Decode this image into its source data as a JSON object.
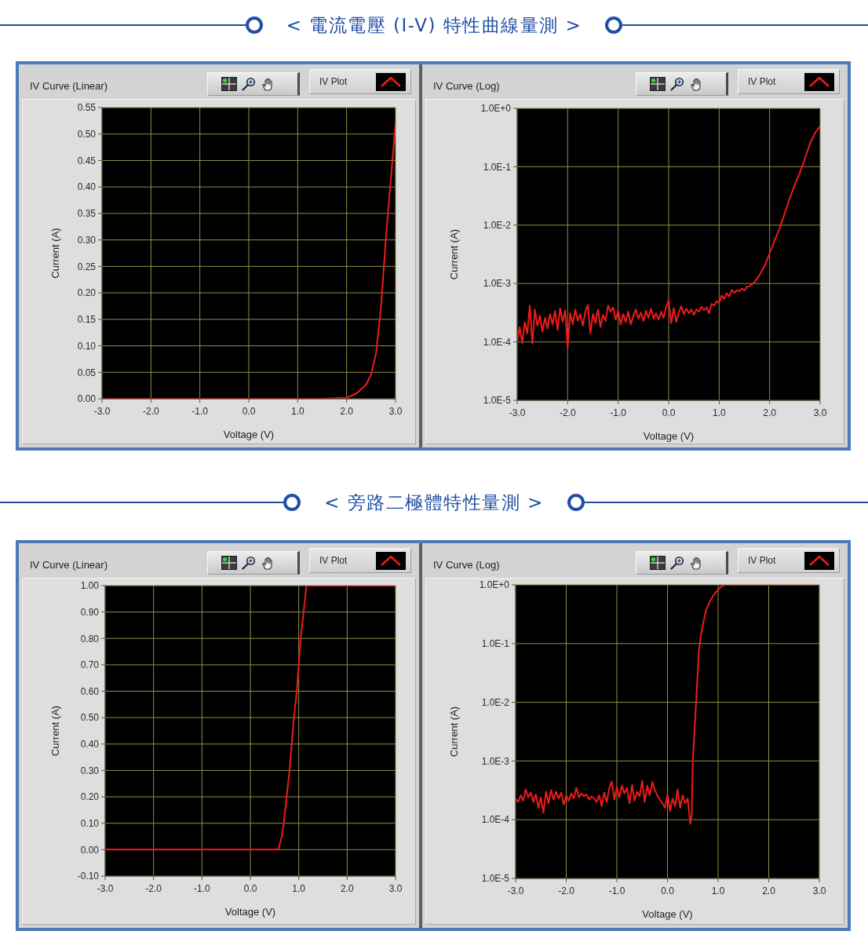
{
  "chart_data": [
    {
      "type": "other",
      "title": "< 電流電壓 (I-V) 特性曲線量測 >"
    },
    {
      "type": "line",
      "title": "IV Curve (Linear)",
      "xlabel": "Voltage (V)",
      "ylabel": "Current (A)",
      "xlim": [
        -3,
        3
      ],
      "ylim": [
        0,
        0.55
      ],
      "xticks": [
        {
          "value": -3,
          "label": "-3.0"
        },
        {
          "value": -2,
          "label": "-2.0"
        },
        {
          "value": -1,
          "label": "-1.0"
        },
        {
          "value": 0,
          "label": "0.0"
        },
        {
          "value": 1,
          "label": "1.0"
        },
        {
          "value": 2,
          "label": "2.0"
        },
        {
          "value": 3,
          "label": "3.0"
        }
      ],
      "yticks": [
        {
          "value": 0,
          "label": "0.00"
        },
        {
          "value": 0.05,
          "label": "0.05"
        },
        {
          "value": 0.1,
          "label": "0.10"
        },
        {
          "value": 0.15,
          "label": "0.15"
        },
        {
          "value": 0.2,
          "label": "0.20"
        },
        {
          "value": 0.25,
          "label": "0.25"
        },
        {
          "value": 0.3,
          "label": "0.30"
        },
        {
          "value": 0.35,
          "label": "0.35"
        },
        {
          "value": 0.4,
          "label": "0.40"
        },
        {
          "value": 0.45,
          "label": "0.45"
        },
        {
          "value": 0.5,
          "label": "0.50"
        },
        {
          "value": 0.55,
          "label": "0.55"
        }
      ],
      "grid": true,
      "legend": "top right",
      "series": [
        {
          "name": "IV Plot",
          "color": "#f01a1a",
          "x": [
            -3,
            1.5,
            2,
            2.2,
            2.4,
            2.5,
            2.6,
            2.7,
            2.8,
            2.9,
            3
          ],
          "values": [
            0,
            0,
            0.002,
            0.01,
            0.027,
            0.046,
            0.085,
            0.17,
            0.3,
            0.41,
            0.52
          ]
        }
      ]
    },
    {
      "type": "line",
      "title": "IV Curve (Log)",
      "xlabel": "Voltage (V)",
      "ylabel": "Current (A)",
      "xlim": [
        -3,
        3
      ],
      "ylim": [
        1e-05,
        1
      ],
      "log": true,
      "xticks": [
        {
          "value": -3,
          "label": "-3.0"
        },
        {
          "value": -2,
          "label": "-2.0"
        },
        {
          "value": -1,
          "label": "-1.0"
        },
        {
          "value": 0,
          "label": "0.0"
        },
        {
          "value": 1,
          "label": "1.0"
        },
        {
          "value": 2,
          "label": "2.0"
        },
        {
          "value": 3,
          "label": "3.0"
        }
      ],
      "yticks": [
        {
          "value": 1e-05,
          "label": "1.0E-5"
        },
        {
          "value": 0.0001,
          "label": "1.0E-4"
        },
        {
          "value": 0.001,
          "label": "1.0E-3"
        },
        {
          "value": 0.01,
          "label": "1.0E-2"
        },
        {
          "value": 0.1,
          "label": "1.0E-1"
        },
        {
          "value": 1,
          "label": "1.0E+0"
        }
      ],
      "grid": true,
      "legend": "top right",
      "series": [
        {
          "name": "IV Plot",
          "color": "#f01a1a",
          "x": [
            -3,
            -2.95,
            -2.9,
            -2.85,
            -2.8,
            -2.75,
            -2.7,
            -2.65,
            -2.6,
            -2.55,
            -2.5,
            -2.45,
            -2.4,
            -2.35,
            -2.3,
            -2.25,
            -2.2,
            -2.15,
            -2.1,
            -2.05,
            -2,
            -1.95,
            -1.9,
            -1.85,
            -1.8,
            -1.75,
            -1.7,
            -1.65,
            -1.6,
            -1.55,
            -1.5,
            -1.45,
            -1.4,
            -1.35,
            -1.3,
            -1.25,
            -1.2,
            -1.15,
            -1.1,
            -1.05,
            -1,
            -0.95,
            -0.9,
            -0.85,
            -0.8,
            -0.75,
            -0.7,
            -0.65,
            -0.6,
            -0.55,
            -0.5,
            -0.45,
            -0.4,
            -0.35,
            -0.3,
            -0.25,
            -0.2,
            -0.15,
            -0.1,
            -0.05,
            0,
            0.05,
            0.1,
            0.15,
            0.2,
            0.25,
            0.3,
            0.35,
            0.4,
            0.45,
            0.5,
            0.55,
            0.6,
            0.65,
            0.7,
            0.75,
            0.8,
            0.85,
            0.9,
            0.95,
            1,
            1.05,
            1.1,
            1.15,
            1.2,
            1.25,
            1.3,
            1.35,
            1.4,
            1.45,
            1.5,
            1.55,
            1.6,
            1.7,
            1.8,
            1.9,
            2,
            2.1,
            2.2,
            2.3,
            2.4,
            2.5,
            2.6,
            2.7,
            2.8,
            2.9,
            3
          ],
          "values": [
            0.0001,
            0.00018,
            9.5e-05,
            0.00022,
            0.00014,
            0.00042,
            9.5e-05,
            0.00036,
            0.00019,
            0.00028,
            0.00015,
            0.00026,
            0.00017,
            0.0003,
            0.0002,
            0.00034,
            0.00016,
            0.00038,
            0.00022,
            0.00035,
            8e-05,
            0.00031,
            0.0002,
            0.00036,
            0.00023,
            0.0003,
            0.00019,
            0.00033,
            0.00043,
            0.00014,
            0.0003,
            0.00021,
            0.00036,
            0.00018,
            0.00029,
            0.00023,
            0.00042,
            0.00033,
            0.00039,
            0.00024,
            0.00034,
            0.0002,
            0.0003,
            0.00022,
            0.00033,
            0.0002,
            0.00028,
            0.00036,
            0.00025,
            0.00032,
            0.00023,
            0.00034,
            0.00026,
            0.00037,
            0.00025,
            0.00031,
            0.00024,
            0.00033,
            0.00026,
            0.0004,
            0.00052,
            0.00021,
            0.00038,
            0.00022,
            0.00032,
            0.00041,
            0.0003,
            0.00037,
            0.00031,
            0.00036,
            0.00029,
            0.00036,
            0.00033,
            0.0004,
            0.00035,
            0.00039,
            0.00031,
            0.00045,
            0.00042,
            0.0005,
            0.00046,
            0.00062,
            0.00055,
            0.00068,
            0.0006,
            0.00078,
            0.00069,
            0.00077,
            0.00074,
            0.00082,
            0.00076,
            0.00088,
            0.0009,
            0.00105,
            0.0014,
            0.002,
            0.0033,
            0.0055,
            0.0089,
            0.016,
            0.029,
            0.05,
            0.08,
            0.14,
            0.25,
            0.38,
            0.5
          ]
        }
      ]
    },
    {
      "type": "other",
      "title": "< 旁路二極體特性量測 >"
    },
    {
      "type": "line",
      "title": "IV Curve (Linear)",
      "xlabel": "Voltage (V)",
      "ylabel": "Current (A)",
      "xlim": [
        -3,
        3
      ],
      "ylim": [
        -0.1,
        1
      ],
      "xticks": [
        {
          "value": -3,
          "label": "-3.0"
        },
        {
          "value": -2,
          "label": "-2.0"
        },
        {
          "value": -1,
          "label": "-1.0"
        },
        {
          "value": 0,
          "label": "0.0"
        },
        {
          "value": 1,
          "label": "1.0"
        },
        {
          "value": 2,
          "label": "2.0"
        },
        {
          "value": 3,
          "label": "3.0"
        }
      ],
      "yticks": [
        {
          "value": -0.1,
          "label": "-0.10"
        },
        {
          "value": 0,
          "label": "0.00"
        },
        {
          "value": 0.1,
          "label": "0.10"
        },
        {
          "value": 0.2,
          "label": "0.20"
        },
        {
          "value": 0.3,
          "label": "0.30"
        },
        {
          "value": 0.4,
          "label": "0.40"
        },
        {
          "value": 0.5,
          "label": "0.50"
        },
        {
          "value": 0.6,
          "label": "0.60"
        },
        {
          "value": 0.7,
          "label": "0.70"
        },
        {
          "value": 0.8,
          "label": "0.80"
        },
        {
          "value": 0.9,
          "label": "0.90"
        },
        {
          "value": 1,
          "label": "1.00"
        }
      ],
      "grid": true,
      "legend": "top right",
      "series": [
        {
          "name": "IV Plot",
          "color": "#f01a1a",
          "x": [
            -3,
            0.58,
            0.65,
            0.69,
            0.81,
            0.9,
            0.96,
            1.04,
            1.1,
            1.16,
            3
          ],
          "values": [
            0,
            0,
            0.05,
            0.1,
            0.3,
            0.5,
            0.6,
            0.8,
            0.9,
            1,
            1
          ]
        }
      ]
    },
    {
      "type": "line",
      "title": "IV Curve (Log)",
      "xlabel": "Voltage (V)",
      "ylabel": "Current (A)",
      "xlim": [
        -3,
        3
      ],
      "ylim": [
        1e-05,
        1
      ],
      "log": true,
      "xticks": [
        {
          "value": -3,
          "label": "-3.0"
        },
        {
          "value": -2,
          "label": "-2.0"
        },
        {
          "value": -1,
          "label": "-1.0"
        },
        {
          "value": 0,
          "label": "0.0"
        },
        {
          "value": 1,
          "label": "1.0"
        },
        {
          "value": 2,
          "label": "2.0"
        },
        {
          "value": 3,
          "label": "3.0"
        }
      ],
      "yticks": [
        {
          "value": 1e-05,
          "label": "1.0E-5"
        },
        {
          "value": 0.0001,
          "label": "1.0E-4"
        },
        {
          "value": 0.001,
          "label": "1.0E-3"
        },
        {
          "value": 0.01,
          "label": "1.0E-2"
        },
        {
          "value": 0.1,
          "label": "1.0E-1"
        },
        {
          "value": 1,
          "label": "1.0E+0"
        }
      ],
      "grid": true,
      "legend": "top right",
      "series": [
        {
          "name": "IV Plot",
          "color": "#f01a1a",
          "x": [
            -3,
            -2.95,
            -2.9,
            -2.85,
            -2.8,
            -2.75,
            -2.7,
            -2.65,
            -2.6,
            -2.55,
            -2.5,
            -2.45,
            -2.4,
            -2.35,
            -2.3,
            -2.25,
            -2.2,
            -2.15,
            -2.1,
            -2.05,
            -2,
            -1.95,
            -1.9,
            -1.85,
            -1.8,
            -1.75,
            -1.7,
            -1.65,
            -1.6,
            -1.55,
            -1.5,
            -1.45,
            -1.4,
            -1.35,
            -1.3,
            -1.25,
            -1.2,
            -1.15,
            -1.1,
            -1.05,
            -1,
            -0.95,
            -0.9,
            -0.85,
            -0.8,
            -0.75,
            -0.7,
            -0.65,
            -0.6,
            -0.55,
            -0.5,
            -0.45,
            -0.4,
            -0.35,
            -0.3,
            -0.25,
            -0.2,
            -0.15,
            -0.1,
            -0.05,
            0,
            0.05,
            0.1,
            0.15,
            0.2,
            0.25,
            0.3,
            0.35,
            0.4,
            0.45,
            0.48,
            0.5,
            0.53,
            0.56,
            0.59,
            0.62,
            0.66,
            0.7,
            0.76,
            0.83,
            0.9,
            1,
            1.06,
            1.13,
            3
          ],
          "values": [
            0.00023,
            0.0002,
            0.00026,
            0.00021,
            0.00033,
            0.00024,
            0.00029,
            0.0002,
            0.00027,
            0.00016,
            0.00024,
            0.00013,
            0.0003,
            0.00019,
            0.00032,
            0.00022,
            0.0003,
            0.00023,
            0.00029,
            0.00018,
            0.00026,
            0.00021,
            0.00028,
            0.00023,
            0.00035,
            0.00024,
            0.00028,
            0.00025,
            0.00027,
            0.00022,
            0.00025,
            0.00023,
            0.0002,
            0.00026,
            0.00017,
            0.00029,
            0.0002,
            0.00034,
            0.00045,
            0.00022,
            0.00036,
            0.00024,
            0.00038,
            0.00028,
            0.00035,
            0.00019,
            0.00039,
            0.00021,
            0.0003,
            0.00025,
            0.00046,
            0.0002,
            0.00038,
            0.00026,
            0.00044,
            0.00032,
            0.00026,
            0.00022,
            0.00019,
            0.00016,
            0.00027,
            0.00014,
            0.00023,
            0.00017,
            0.00033,
            0.00016,
            0.00026,
            0.00019,
            0.00023,
            8.5e-05,
            0.00012,
            0.00095,
            0.003,
            0.0083,
            0.025,
            0.073,
            0.14,
            0.21,
            0.36,
            0.51,
            0.65,
            0.83,
            0.93,
            1,
            1
          ]
        }
      ]
    }
  ]
}
